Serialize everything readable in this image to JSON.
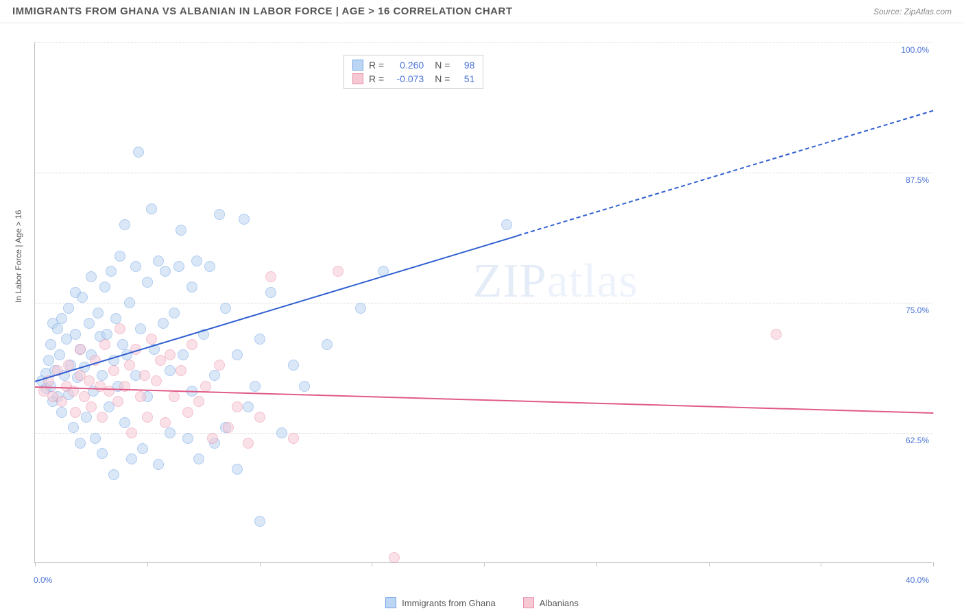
{
  "header": {
    "title": "IMMIGRANTS FROM GHANA VS ALBANIAN IN LABOR FORCE | AGE > 16 CORRELATION CHART",
    "source": "Source: ZipAtlas.com"
  },
  "watermark": {
    "bold": "ZIP",
    "light": "atlas"
  },
  "chart": {
    "type": "scatter",
    "y_axis_title": "In Labor Force | Age > 16",
    "xlim": [
      0,
      40
    ],
    "ylim": [
      50,
      100
    ],
    "x_ticks": [
      0,
      5,
      10,
      15,
      20,
      25,
      30,
      35,
      40
    ],
    "x_tick_labels": {
      "0": "0.0%",
      "40": "40.0%"
    },
    "y_gridlines": [
      62.5,
      75.0,
      87.5,
      100.0
    ],
    "y_tick_labels": [
      "62.5%",
      "75.0%",
      "87.5%",
      "100.0%"
    ],
    "background_color": "#ffffff",
    "grid_color": "#dcdcdc",
    "axis_color": "#bfbfbf",
    "label_color": "#4a74d6",
    "title_color": "#555555",
    "marker_radius": 8,
    "marker_opacity": 0.55,
    "series": [
      {
        "name": "Immigrants from Ghana",
        "fill": "#bcd5f2",
        "stroke": "#6ea3e6",
        "line_color": "#2f5fd0",
        "R": "0.260",
        "N": "98",
        "trend": {
          "x1": 0,
          "y1": 67.5,
          "x2": 21.5,
          "y2": 81.5,
          "x1d": 21.5,
          "y1d": 81.5,
          "x2d": 40,
          "y2d": 93.5
        },
        "points": [
          [
            0.3,
            67.5
          ],
          [
            0.5,
            68.2
          ],
          [
            0.5,
            66.8
          ],
          [
            0.6,
            69.5
          ],
          [
            0.7,
            67.0
          ],
          [
            0.7,
            71.0
          ],
          [
            0.8,
            65.5
          ],
          [
            0.8,
            73.0
          ],
          [
            0.9,
            68.5
          ],
          [
            1.0,
            66.0
          ],
          [
            1.0,
            72.5
          ],
          [
            1.1,
            70.0
          ],
          [
            1.2,
            64.5
          ],
          [
            1.2,
            73.5
          ],
          [
            1.3,
            68.0
          ],
          [
            1.4,
            71.5
          ],
          [
            1.5,
            66.2
          ],
          [
            1.5,
            74.5
          ],
          [
            1.6,
            69.0
          ],
          [
            1.7,
            63.0
          ],
          [
            1.8,
            72.0
          ],
          [
            1.8,
            76.0
          ],
          [
            1.9,
            67.8
          ],
          [
            2.0,
            70.5
          ],
          [
            2.0,
            61.5
          ],
          [
            2.1,
            75.5
          ],
          [
            2.2,
            68.8
          ],
          [
            2.3,
            64.0
          ],
          [
            2.4,
            73.0
          ],
          [
            2.5,
            70.0
          ],
          [
            2.5,
            77.5
          ],
          [
            2.6,
            66.5
          ],
          [
            2.7,
            62.0
          ],
          [
            2.8,
            74.0
          ],
          [
            2.9,
            71.8
          ],
          [
            3.0,
            68.0
          ],
          [
            3.0,
            60.5
          ],
          [
            3.1,
            76.5
          ],
          [
            3.2,
            72.0
          ],
          [
            3.3,
            65.0
          ],
          [
            3.4,
            78.0
          ],
          [
            3.5,
            69.5
          ],
          [
            3.5,
            58.5
          ],
          [
            3.6,
            73.5
          ],
          [
            3.7,
            67.0
          ],
          [
            3.8,
            79.5
          ],
          [
            3.9,
            71.0
          ],
          [
            4.0,
            63.5
          ],
          [
            4.0,
            82.5
          ],
          [
            4.1,
            70.0
          ],
          [
            4.2,
            75.0
          ],
          [
            4.3,
            60.0
          ],
          [
            4.5,
            78.5
          ],
          [
            4.5,
            68.0
          ],
          [
            4.6,
            89.5
          ],
          [
            4.7,
            72.5
          ],
          [
            4.8,
            61.0
          ],
          [
            5.0,
            77.0
          ],
          [
            5.0,
            66.0
          ],
          [
            5.2,
            84.0
          ],
          [
            5.3,
            70.5
          ],
          [
            5.5,
            59.5
          ],
          [
            5.5,
            79.0
          ],
          [
            5.7,
            73.0
          ],
          [
            5.8,
            78.0
          ],
          [
            6.0,
            68.5
          ],
          [
            6.0,
            62.5
          ],
          [
            6.2,
            74.0
          ],
          [
            6.4,
            78.5
          ],
          [
            6.5,
            82.0
          ],
          [
            6.6,
            70.0
          ],
          [
            6.8,
            62.0
          ],
          [
            7.0,
            76.5
          ],
          [
            7.0,
            66.5
          ],
          [
            7.2,
            79.0
          ],
          [
            7.3,
            60.0
          ],
          [
            7.5,
            72.0
          ],
          [
            7.8,
            78.5
          ],
          [
            8.0,
            68.0
          ],
          [
            8.0,
            61.5
          ],
          [
            8.2,
            83.5
          ],
          [
            8.5,
            74.5
          ],
          [
            8.5,
            63.0
          ],
          [
            9.0,
            70.0
          ],
          [
            9.0,
            59.0
          ],
          [
            9.3,
            83.0
          ],
          [
            9.5,
            65.0
          ],
          [
            9.8,
            67.0
          ],
          [
            10.0,
            71.5
          ],
          [
            10.0,
            54.0
          ],
          [
            10.5,
            76.0
          ],
          [
            11.0,
            62.5
          ],
          [
            11.5,
            69.0
          ],
          [
            12.0,
            67.0
          ],
          [
            13.0,
            71.0
          ],
          [
            14.5,
            74.5
          ],
          [
            15.5,
            78.0
          ],
          [
            21.0,
            82.5
          ]
        ]
      },
      {
        "name": "Albanians",
        "fill": "#f6c8d4",
        "stroke": "#e890aa",
        "line_color": "#e05a87",
        "R": "-0.073",
        "N": "51",
        "trend": {
          "x1": 0,
          "y1": 67.0,
          "x2": 40,
          "y2": 64.5
        },
        "points": [
          [
            0.4,
            66.5
          ],
          [
            0.6,
            67.5
          ],
          [
            0.8,
            66.0
          ],
          [
            1.0,
            68.5
          ],
          [
            1.2,
            65.5
          ],
          [
            1.4,
            67.0
          ],
          [
            1.5,
            69.0
          ],
          [
            1.7,
            66.5
          ],
          [
            1.8,
            64.5
          ],
          [
            2.0,
            68.0
          ],
          [
            2.0,
            70.5
          ],
          [
            2.2,
            66.0
          ],
          [
            2.4,
            67.5
          ],
          [
            2.5,
            65.0
          ],
          [
            2.7,
            69.5
          ],
          [
            2.9,
            67.0
          ],
          [
            3.0,
            64.0
          ],
          [
            3.1,
            71.0
          ],
          [
            3.3,
            66.5
          ],
          [
            3.5,
            68.5
          ],
          [
            3.7,
            65.5
          ],
          [
            3.8,
            72.5
          ],
          [
            4.0,
            67.0
          ],
          [
            4.2,
            69.0
          ],
          [
            4.3,
            62.5
          ],
          [
            4.5,
            70.5
          ],
          [
            4.7,
            66.0
          ],
          [
            4.9,
            68.0
          ],
          [
            5.0,
            64.0
          ],
          [
            5.2,
            71.5
          ],
          [
            5.4,
            67.5
          ],
          [
            5.6,
            69.5
          ],
          [
            5.8,
            63.5
          ],
          [
            6.0,
            70.0
          ],
          [
            6.2,
            66.0
          ],
          [
            6.5,
            68.5
          ],
          [
            6.8,
            64.5
          ],
          [
            7.0,
            71.0
          ],
          [
            7.3,
            65.5
          ],
          [
            7.6,
            67.0
          ],
          [
            7.9,
            62.0
          ],
          [
            8.2,
            69.0
          ],
          [
            8.6,
            63.0
          ],
          [
            9.0,
            65.0
          ],
          [
            9.5,
            61.5
          ],
          [
            10.0,
            64.0
          ],
          [
            10.5,
            77.5
          ],
          [
            11.5,
            62.0
          ],
          [
            13.5,
            78.0
          ],
          [
            16.0,
            50.5
          ],
          [
            33.0,
            72.0
          ]
        ]
      }
    ]
  },
  "legend_bottom": [
    {
      "label": "Immigrants from Ghana",
      "fill": "#bcd5f2",
      "stroke": "#6ea3e6"
    },
    {
      "label": "Albanians",
      "fill": "#f6c8d4",
      "stroke": "#e890aa"
    }
  ],
  "stats_labels": {
    "r": "R =",
    "n": "N ="
  }
}
